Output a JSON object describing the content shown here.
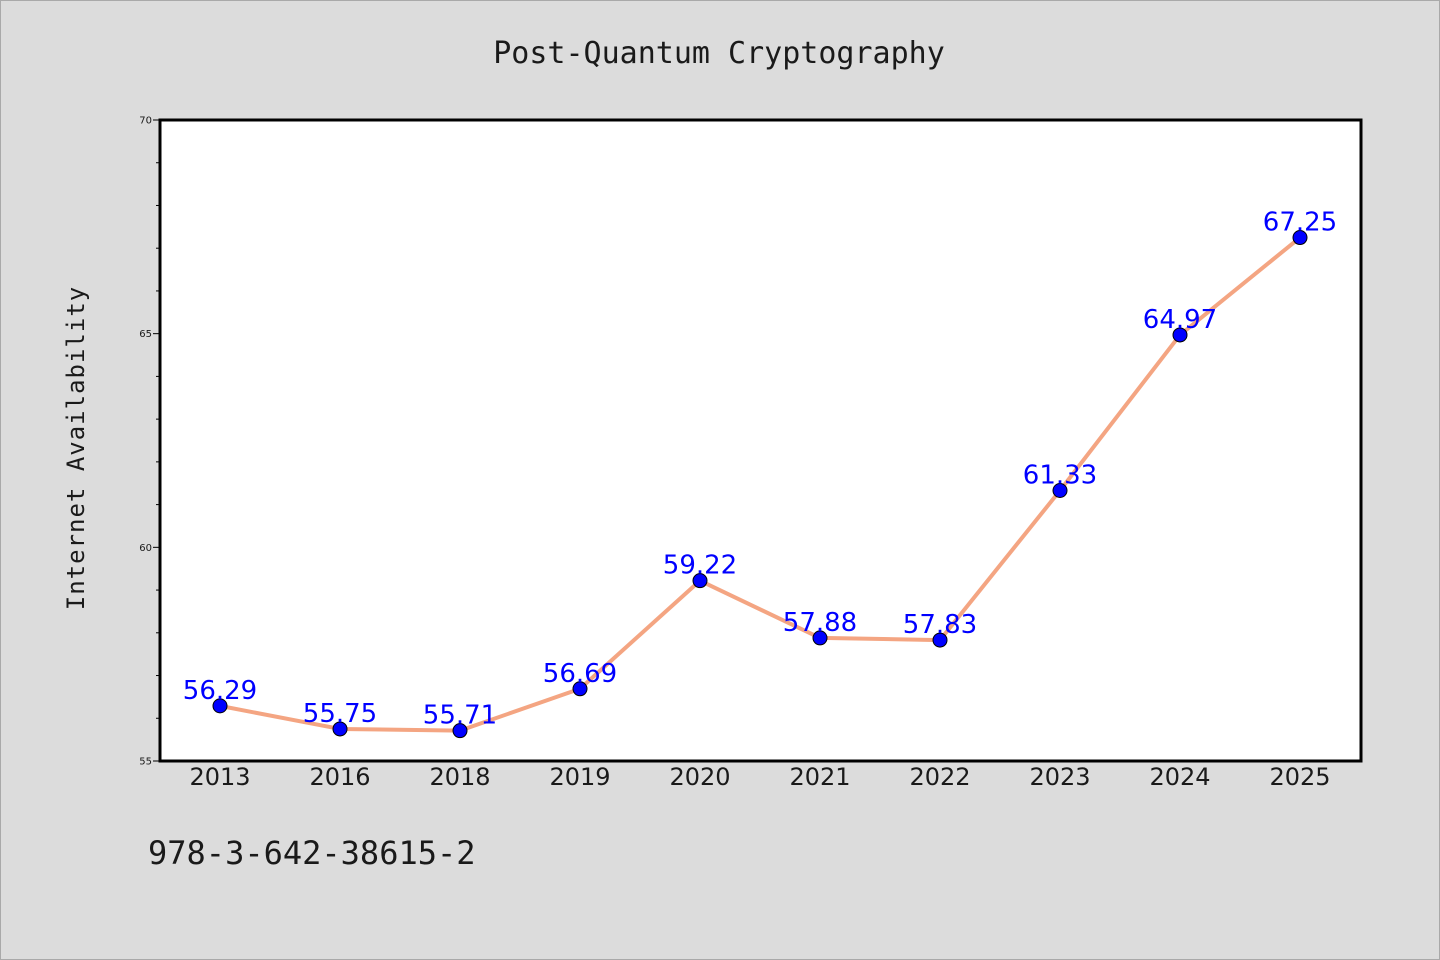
{
  "chart_data": {
    "type": "line",
    "title": "Post-Quantum Cryptography",
    "xlabel": "",
    "ylabel": "Internet Availability",
    "categories": [
      "2013",
      "2016",
      "2018",
      "2019",
      "2020",
      "2021",
      "2022",
      "2023",
      "2024",
      "2025"
    ],
    "series": [
      {
        "values": [
          56.29,
          55.75,
          55.71,
          56.69,
          59.22,
          57.88,
          57.83,
          61.33,
          64.97,
          67.25
        ],
        "data_labels": [
          "56.29",
          "55.75",
          "55.71",
          "56.69",
          "59.22",
          "57.88",
          "57.83",
          "61.33",
          "64.97",
          "67.25"
        ],
        "line_color": "#f4a582",
        "marker_color": "#0000ff"
      }
    ],
    "ylim": [
      55,
      70
    ],
    "yticks": [
      "55",
      "60",
      "65",
      "70"
    ],
    "grid": false,
    "legend": "none"
  },
  "footnote": "978-3-642-38615-2",
  "colors": {
    "background": "#dcdcdc",
    "plot_background": "#ffffff",
    "label_color": "#0000ff"
  }
}
